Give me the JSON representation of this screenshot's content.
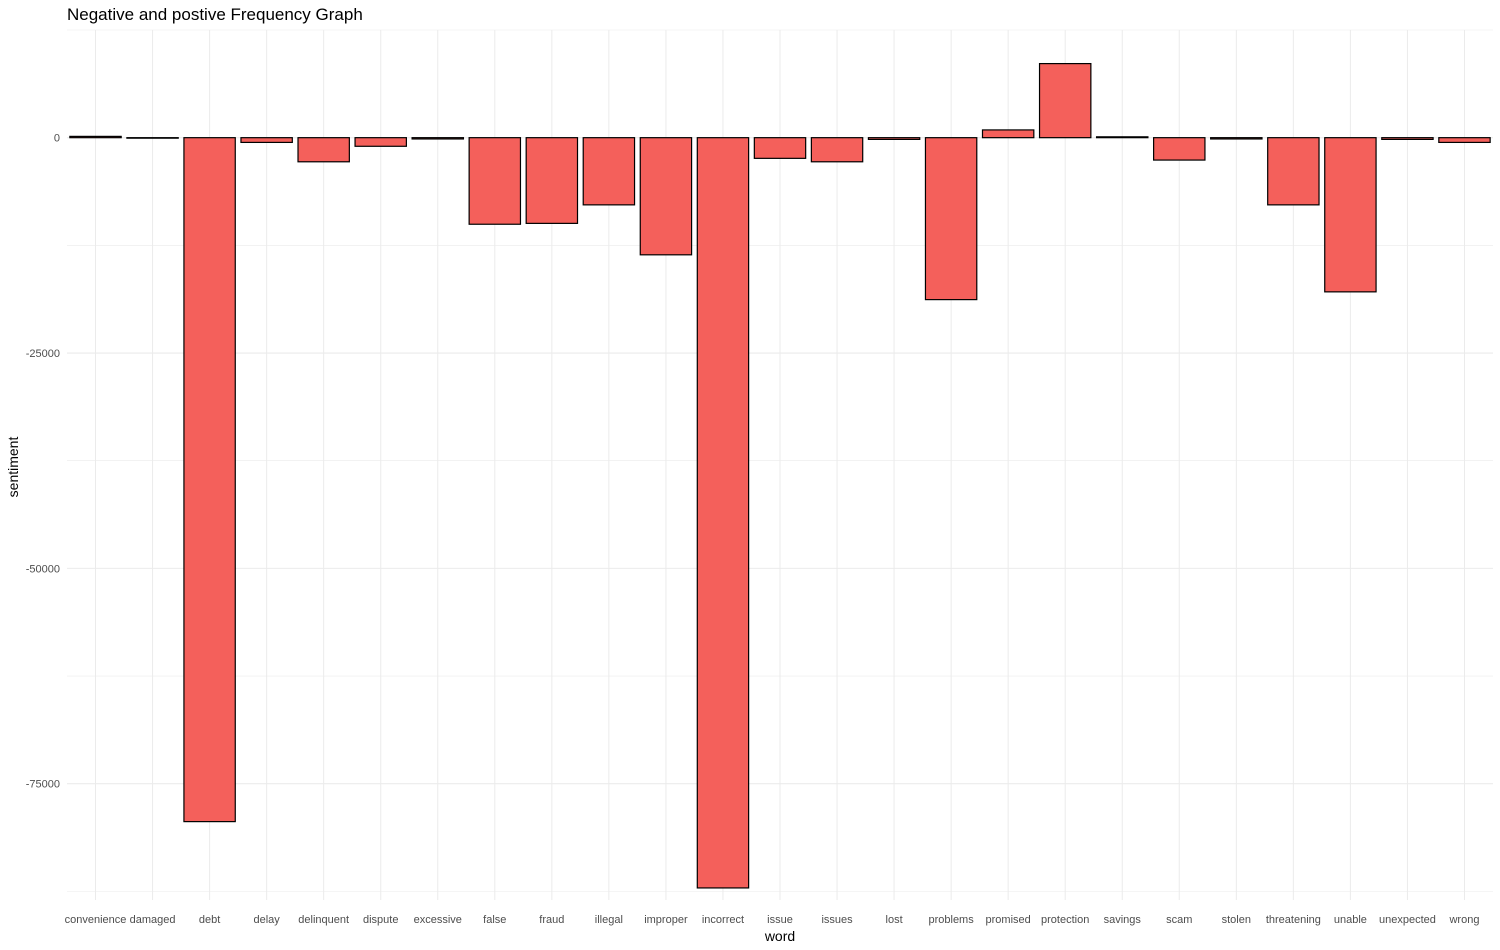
{
  "chart_data": {
    "type": "bar",
    "title": "Negative and postive Frequency Graph",
    "xlabel": "word",
    "ylabel": "sentiment",
    "categories": [
      "convenience",
      "damaged",
      "debt",
      "delay",
      "delinquent",
      "dispute",
      "excessive",
      "false",
      "fraud",
      "illegal",
      "improper",
      "incorrect",
      "issue",
      "issues",
      "lost",
      "problems",
      "promised",
      "protection",
      "savings",
      "scam",
      "stolen",
      "threatening",
      "unable",
      "unexpected",
      "wrong"
    ],
    "values": [
      150,
      -60,
      -79400,
      -550,
      -2800,
      -1000,
      -150,
      -10050,
      -9950,
      -7800,
      -13600,
      -87100,
      -2400,
      -2800,
      -200,
      -18800,
      900,
      8600,
      100,
      -2600,
      -150,
      -7800,
      -17900,
      -200,
      -550
    ],
    "ylim": [
      -88500,
      12500
    ],
    "yticks": [
      0,
      -25000,
      -50000,
      -75000
    ],
    "ytick_labels": [
      "0",
      "-25000",
      "-50000",
      "-75000"
    ],
    "bar_fill": "#f4605b",
    "bar_stroke": "#000000",
    "grid": true,
    "grid_color": "#ebebeb",
    "legend": "none"
  }
}
